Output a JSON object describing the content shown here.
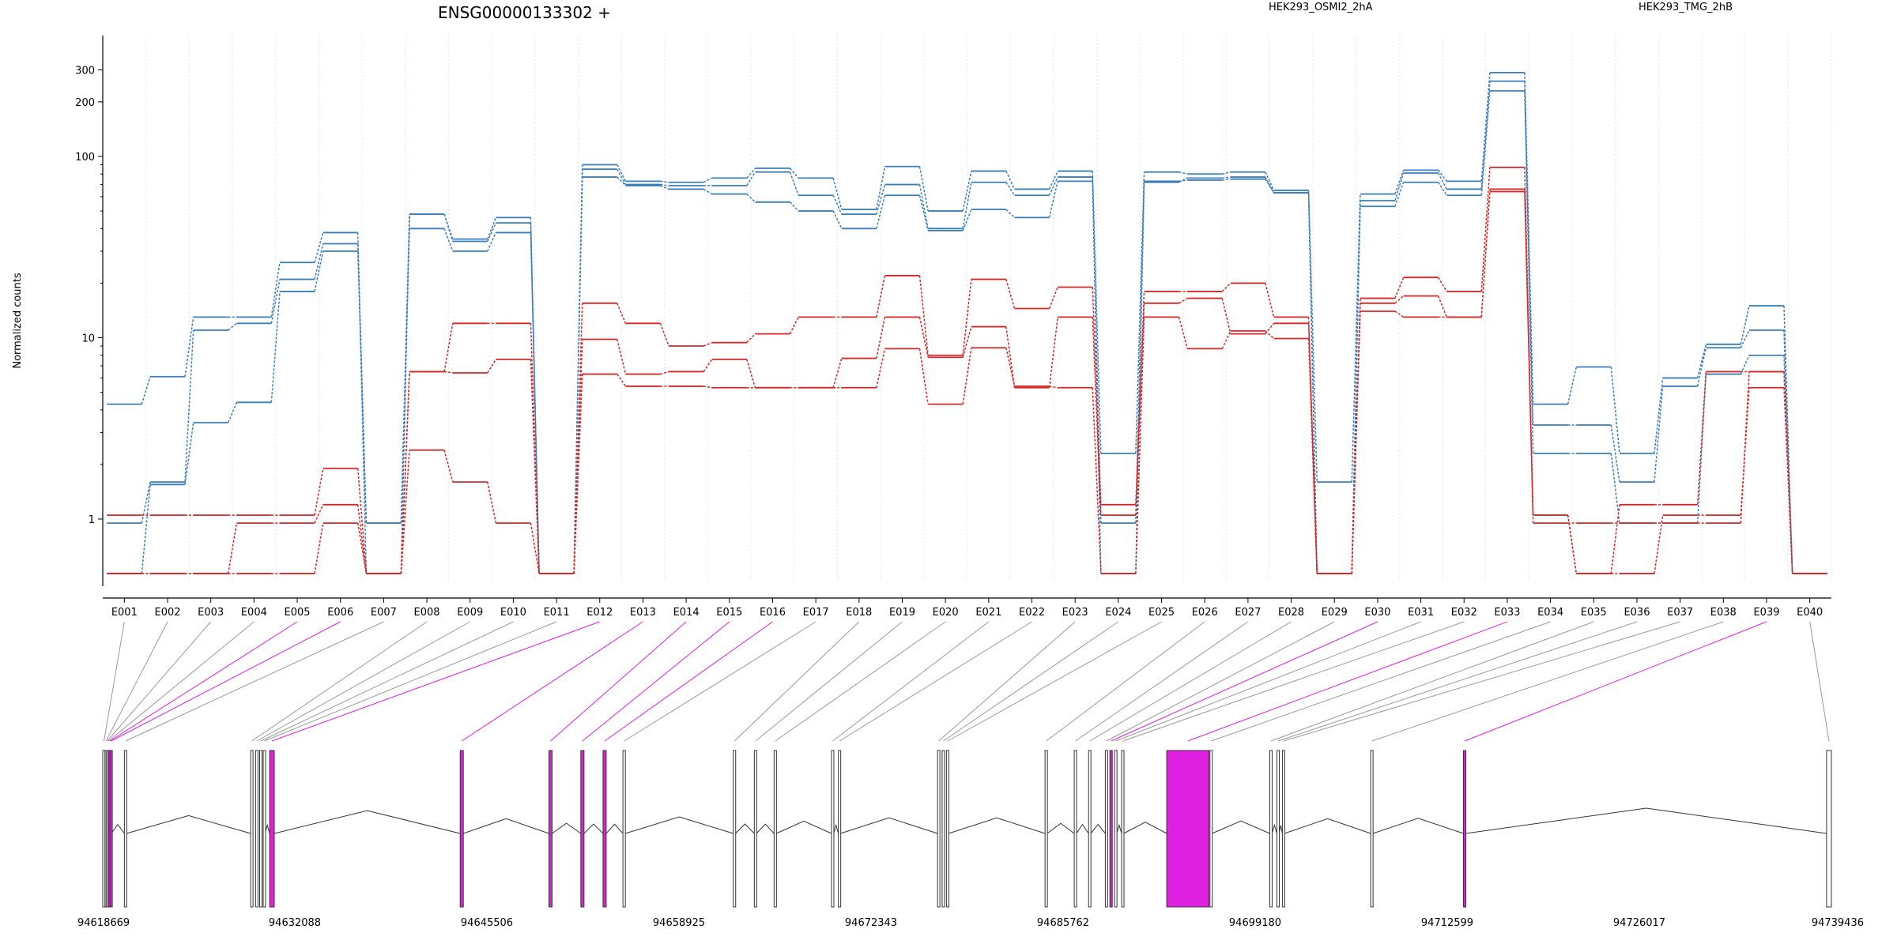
{
  "chart_data": {
    "type": "line",
    "title": "ENSG00000133302 +",
    "ylabel": "Normalized counts",
    "yscale": "log",
    "ylim": [
      0.5,
      380
    ],
    "yticks": [
      1,
      10,
      100,
      200,
      300
    ],
    "colors": {
      "HEK293_OSMI2_2hA": "#d62728",
      "HEK293_TMG_2hB": "#3a7dbb",
      "highlight": "#e020e0"
    },
    "legend": [
      {
        "name": "HEK293_OSMI2_2hA",
        "color": "#d62728"
      },
      {
        "name": "HEK293_TMG_2hB",
        "color": "#3a7dbb"
      }
    ],
    "categories": [
      "E001",
      "E002",
      "E003",
      "E004",
      "E005",
      "E006",
      "E007",
      "E008",
      "E009",
      "E010",
      "E011",
      "E012",
      "E013",
      "E014",
      "E015",
      "E016",
      "E017",
      "E018",
      "E019",
      "E020",
      "E021",
      "E022",
      "E023",
      "E024",
      "E025",
      "E026",
      "E027",
      "E028",
      "E029",
      "E030",
      "E031",
      "E032",
      "E033",
      "E034",
      "E035",
      "E036",
      "E037",
      "E038",
      "E039",
      "E040"
    ],
    "series": [
      {
        "group": "HEK293_TMG_2hB",
        "values": [
          4.3,
          6.1,
          13,
          13,
          26,
          38,
          0.5,
          48,
          35,
          46,
          0.5,
          90,
          73,
          72,
          76,
          86,
          76,
          51,
          88,
          50,
          83,
          66,
          83,
          2.3,
          82,
          80,
          82,
          65,
          1.6,
          62,
          84,
          73,
          290,
          4.3,
          6.9,
          2.3,
          6.0,
          9.2,
          15,
          0.5
        ]
      },
      {
        "group": "HEK293_TMG_2hB",
        "values": [
          0.95,
          1.6,
          11,
          12,
          21,
          33,
          0.95,
          48,
          34,
          43,
          0.5,
          85,
          70,
          69,
          69,
          82,
          61,
          48,
          70,
          40,
          72,
          61,
          77,
          0.5,
          72,
          76,
          77,
          63,
          0.5,
          57,
          81,
          66,
          260,
          3.3,
          3.3,
          1.6,
          5.4,
          8.8,
          11,
          0.5
        ]
      },
      {
        "group": "HEK293_TMG_2hB",
        "values": [
          0.5,
          1.55,
          3.4,
          4.4,
          18,
          30,
          0.95,
          40,
          30,
          38,
          0.5,
          77,
          69,
          66,
          62,
          56,
          50,
          40,
          61,
          39,
          51,
          46,
          73,
          0.95,
          73,
          74,
          75,
          63,
          0.5,
          53,
          72,
          61,
          230,
          2.3,
          2.3,
          0.95,
          0.95,
          6.3,
          8.0,
          0.5
        ]
      },
      {
        "group": "HEK293_OSMI2_2hA",
        "values": [
          1.05,
          1.05,
          1.05,
          1.05,
          1.05,
          1.9,
          0.5,
          6.5,
          12,
          12,
          0.5,
          15.5,
          12,
          9.0,
          9.4,
          10.5,
          13,
          13,
          22,
          8.0,
          21,
          14.5,
          19,
          1.2,
          18,
          18,
          20,
          13,
          0.5,
          16.5,
          21.5,
          18,
          87,
          1.05,
          0.5,
          1.2,
          1.2,
          6.5,
          6.5,
          0.5
        ]
      },
      {
        "group": "HEK293_OSMI2_2hA",
        "values": [
          0.5,
          0.5,
          0.5,
          0.95,
          0.95,
          1.2,
          0.5,
          6.5,
          6.4,
          7.6,
          0.5,
          9.8,
          6.3,
          6.5,
          7.6,
          5.3,
          5.3,
          7.7,
          13,
          7.8,
          11.5,
          5.3,
          13,
          1.05,
          15.5,
          16.5,
          10.5,
          12,
          0.5,
          15.5,
          17,
          13,
          66,
          0.95,
          0.95,
          0.95,
          0.95,
          0.95,
          6.5,
          0.5
        ]
      },
      {
        "group": "HEK293_OSMI2_2hA",
        "values": [
          0.5,
          0.5,
          0.5,
          0.5,
          0.5,
          0.95,
          0.5,
          2.4,
          1.6,
          0.95,
          0.5,
          6.3,
          5.4,
          5.4,
          5.3,
          5.3,
          5.3,
          5.3,
          8.7,
          4.3,
          8.8,
          5.4,
          5.3,
          0.5,
          13,
          8.7,
          10.9,
          9.9,
          0.5,
          14,
          13,
          13,
          64,
          1.05,
          0.5,
          0.5,
          1.05,
          1.05,
          5.3,
          0.5
        ]
      }
    ],
    "genome_axis": {
      "ticks": [
        "94618669",
        "94632088",
        "94645506",
        "94658925",
        "94672343",
        "94685762",
        "94699180",
        "94712599",
        "94726017",
        "94739436"
      ],
      "range": [
        94618669,
        94739436
      ],
      "exons": [
        {
          "id": "E001",
          "start": 94618669,
          "end": 94618820,
          "highlight": false
        },
        {
          "id": "E002",
          "start": 94618820,
          "end": 94618900,
          "highlight": false
        },
        {
          "id": "E003",
          "start": 94618900,
          "end": 94618990,
          "highlight": false
        },
        {
          "id": "E004",
          "start": 94618990,
          "end": 94619080,
          "highlight": false
        },
        {
          "id": "E005",
          "start": 94619080,
          "end": 94619170,
          "highlight": true
        },
        {
          "id": "E006",
          "start": 94619170,
          "end": 94619260,
          "highlight": true
        },
        {
          "id": "E007",
          "start": 94620180,
          "end": 94620330,
          "highlight": false
        },
        {
          "id": "E008",
          "start": 94629000,
          "end": 94629150,
          "highlight": false
        },
        {
          "id": "E009",
          "start": 94629350,
          "end": 94629500,
          "highlight": false
        },
        {
          "id": "E010",
          "start": 94629630,
          "end": 94629780,
          "highlight": false
        },
        {
          "id": "E011",
          "start": 94629880,
          "end": 94630000,
          "highlight": false
        },
        {
          "id": "E012",
          "start": 94630330,
          "end": 94630650,
          "highlight": true
        },
        {
          "id": "E013",
          "start": 94643640,
          "end": 94643860,
          "highlight": true
        },
        {
          "id": "E014",
          "start": 94649840,
          "end": 94650060,
          "highlight": true
        },
        {
          "id": "E015",
          "start": 94652070,
          "end": 94652290,
          "highlight": true
        },
        {
          "id": "E016",
          "start": 94653620,
          "end": 94653840,
          "highlight": true
        },
        {
          "id": "E017",
          "start": 94655010,
          "end": 94655180,
          "highlight": false
        },
        {
          "id": "E018",
          "start": 94662720,
          "end": 94662870,
          "highlight": false
        },
        {
          "id": "E019",
          "start": 94664190,
          "end": 94664340,
          "highlight": false
        },
        {
          "id": "E020",
          "start": 94665570,
          "end": 94665720,
          "highlight": false
        },
        {
          "id": "E021",
          "start": 94669580,
          "end": 94669730,
          "highlight": false
        },
        {
          "id": "E022",
          "start": 94670060,
          "end": 94670210,
          "highlight": false
        },
        {
          "id": "E023",
          "start": 94676990,
          "end": 94677140,
          "highlight": false
        },
        {
          "id": "E024",
          "start": 94677310,
          "end": 94677460,
          "highlight": false
        },
        {
          "id": "E025",
          "start": 94677610,
          "end": 94677760,
          "highlight": false
        },
        {
          "id": "E026",
          "start": 94684500,
          "end": 94684650,
          "highlight": false
        },
        {
          "id": "E027",
          "start": 94686540,
          "end": 94686690,
          "highlight": false
        },
        {
          "id": "E028",
          "start": 94687540,
          "end": 94687690,
          "highlight": false
        },
        {
          "id": "E029",
          "start": 94688710,
          "end": 94688860,
          "highlight": false
        },
        {
          "id": "E030",
          "start": 94689030,
          "end": 94689180,
          "highlight": true
        },
        {
          "id": "E031",
          "start": 94689360,
          "end": 94689510,
          "highlight": false
        },
        {
          "id": "E032",
          "start": 94689850,
          "end": 94690000,
          "highlight": false
        },
        {
          "id": "E033",
          "start": 94693000,
          "end": 94695950,
          "highlight": true
        },
        {
          "id": "E034",
          "start": 94696020,
          "end": 94696170,
          "highlight": false
        },
        {
          "id": "E035",
          "start": 94700200,
          "end": 94700350,
          "highlight": false
        },
        {
          "id": "E036",
          "start": 94700700,
          "end": 94700850,
          "highlight": false
        },
        {
          "id": "E037",
          "start": 94701080,
          "end": 94701230,
          "highlight": false
        },
        {
          "id": "E038",
          "start": 94707250,
          "end": 94707400,
          "highlight": false
        },
        {
          "id": "E039",
          "start": 94713730,
          "end": 94713900,
          "highlight": true
        },
        {
          "id": "E040",
          "start": 94739100,
          "end": 94739436,
          "highlight": false
        }
      ]
    }
  }
}
